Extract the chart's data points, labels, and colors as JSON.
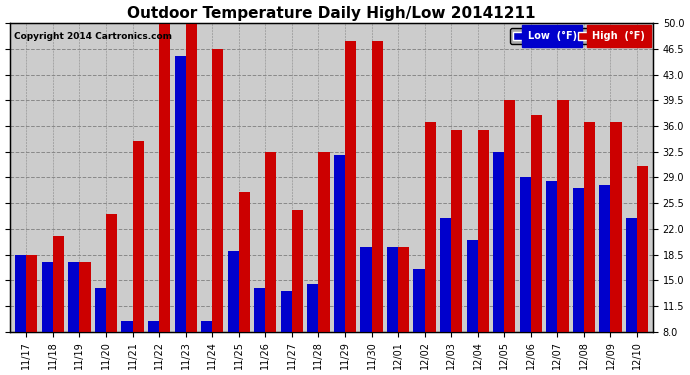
{
  "title": "Outdoor Temperature Daily High/Low 20141211",
  "copyright_text": "Copyright 2014 Cartronics.com",
  "legend_low_label": "Low  (°F)",
  "legend_high_label": "High  (°F)",
  "categories": [
    "11/17",
    "11/18",
    "11/19",
    "11/20",
    "11/21",
    "11/22",
    "11/23",
    "11/24",
    "11/25",
    "11/26",
    "11/27",
    "11/28",
    "11/29",
    "11/30",
    "12/01",
    "12/02",
    "12/03",
    "12/04",
    "12/05",
    "12/06",
    "12/07",
    "12/08",
    "12/09",
    "12/10"
  ],
  "low_values": [
    18.5,
    17.5,
    17.5,
    14.0,
    9.5,
    9.5,
    45.5,
    9.5,
    19.0,
    14.0,
    13.5,
    14.5,
    32.0,
    19.5,
    19.5,
    16.5,
    23.5,
    20.5,
    32.5,
    29.0,
    28.5,
    27.5,
    28.0,
    23.5
  ],
  "high_values": [
    18.5,
    21.0,
    17.5,
    24.0,
    34.0,
    50.5,
    50.5,
    46.5,
    27.0,
    32.5,
    24.5,
    32.5,
    47.5,
    47.5,
    19.5,
    36.5,
    35.5,
    35.5,
    39.5,
    37.5,
    39.5,
    36.5,
    36.5,
    30.5
  ],
  "ylim_min": 8.0,
  "ylim_max": 50.0,
  "yticks": [
    8.0,
    11.5,
    15.0,
    18.5,
    22.0,
    25.5,
    29.0,
    32.5,
    36.0,
    39.5,
    43.0,
    46.5,
    50.0
  ],
  "bar_bottom": 8.0,
  "bar_width": 0.42,
  "low_color": "#0000cc",
  "high_color": "#cc0000",
  "background_color": "#ffffff",
  "plot_bg_color": "#cccccc",
  "grid_color": "#888888",
  "title_fontsize": 11,
  "tick_fontsize": 7,
  "copyright_fontsize": 6.5
}
